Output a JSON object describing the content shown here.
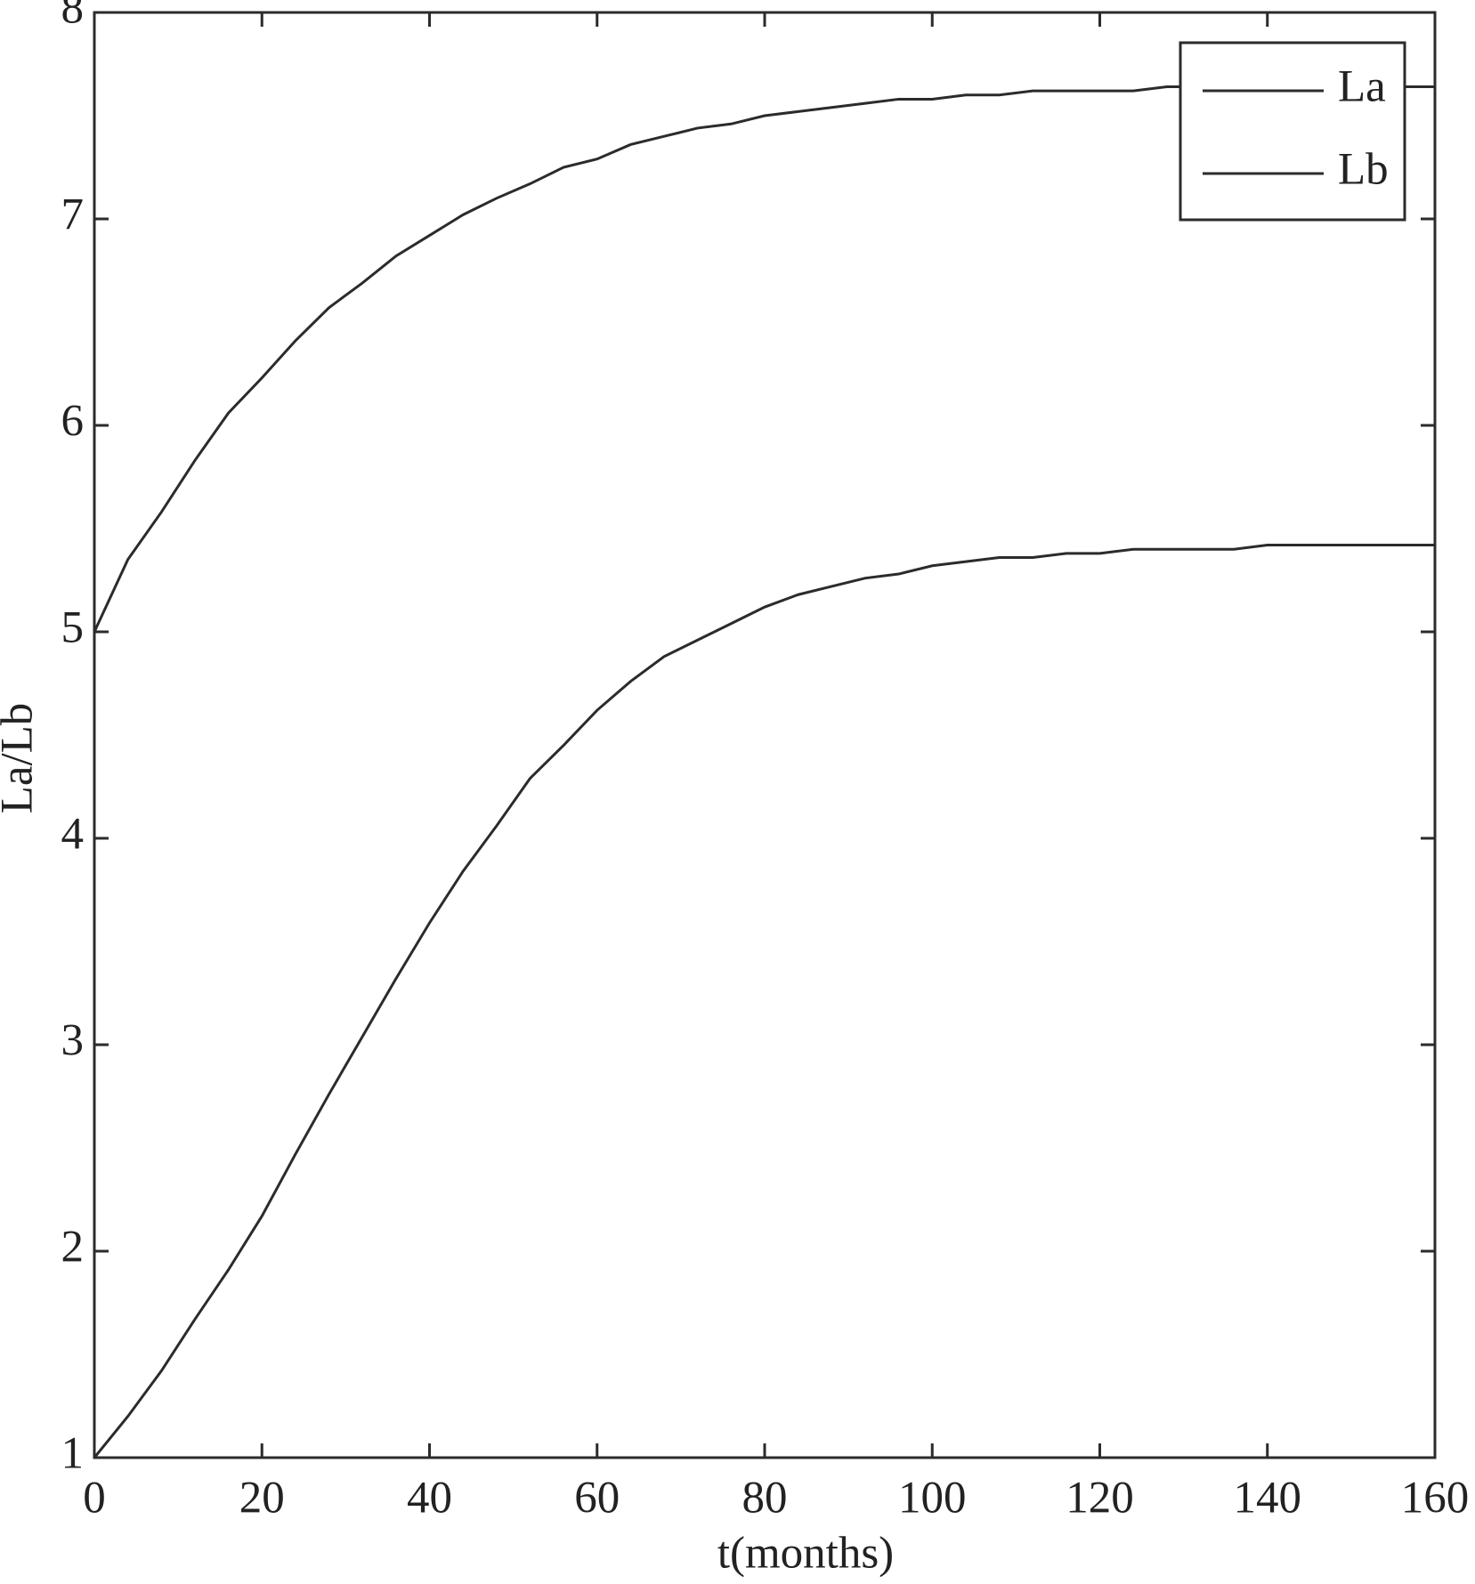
{
  "chart_data": {
    "type": "line",
    "x": [
      0,
      4,
      8,
      12,
      16,
      20,
      24,
      28,
      32,
      36,
      40,
      44,
      48,
      52,
      56,
      60,
      64,
      68,
      72,
      76,
      80,
      84,
      88,
      92,
      96,
      100,
      104,
      108,
      112,
      116,
      120,
      124,
      128,
      132,
      136,
      140,
      144,
      148,
      152,
      156,
      160
    ],
    "series": [
      {
        "name": "La",
        "color": "#2b2b2b",
        "values": [
          5.0,
          5.35,
          5.58,
          5.83,
          6.06,
          6.23,
          6.41,
          6.57,
          6.69,
          6.82,
          6.92,
          7.02,
          7.1,
          7.17,
          7.25,
          7.29,
          7.36,
          7.4,
          7.44,
          7.46,
          7.5,
          7.52,
          7.54,
          7.56,
          7.58,
          7.58,
          7.6,
          7.6,
          7.62,
          7.62,
          7.62,
          7.62,
          7.64,
          7.64,
          7.64,
          7.64,
          7.64,
          7.64,
          7.64,
          7.64,
          7.64
        ]
      },
      {
        "name": "Lb",
        "color": "#2b2b2b",
        "values": [
          1.0,
          1.2,
          1.42,
          1.67,
          1.91,
          2.17,
          2.47,
          2.76,
          3.04,
          3.32,
          3.59,
          3.84,
          4.06,
          4.29,
          4.45,
          4.62,
          4.76,
          4.88,
          4.96,
          5.04,
          5.12,
          5.18,
          5.22,
          5.26,
          5.28,
          5.32,
          5.34,
          5.36,
          5.36,
          5.38,
          5.38,
          5.4,
          5.4,
          5.4,
          5.4,
          5.42,
          5.42,
          5.42,
          5.42,
          5.42,
          5.42
        ]
      }
    ],
    "xlabel": "t(months)",
    "ylabel": "La/Lb",
    "xlim": [
      0,
      160
    ],
    "xticks": [
      0,
      20,
      40,
      60,
      80,
      100,
      120,
      140,
      160
    ],
    "ylim": [
      1,
      8
    ],
    "yticks": [
      1,
      2,
      3,
      4,
      5,
      6,
      7,
      8
    ],
    "legend": "upper right"
  }
}
